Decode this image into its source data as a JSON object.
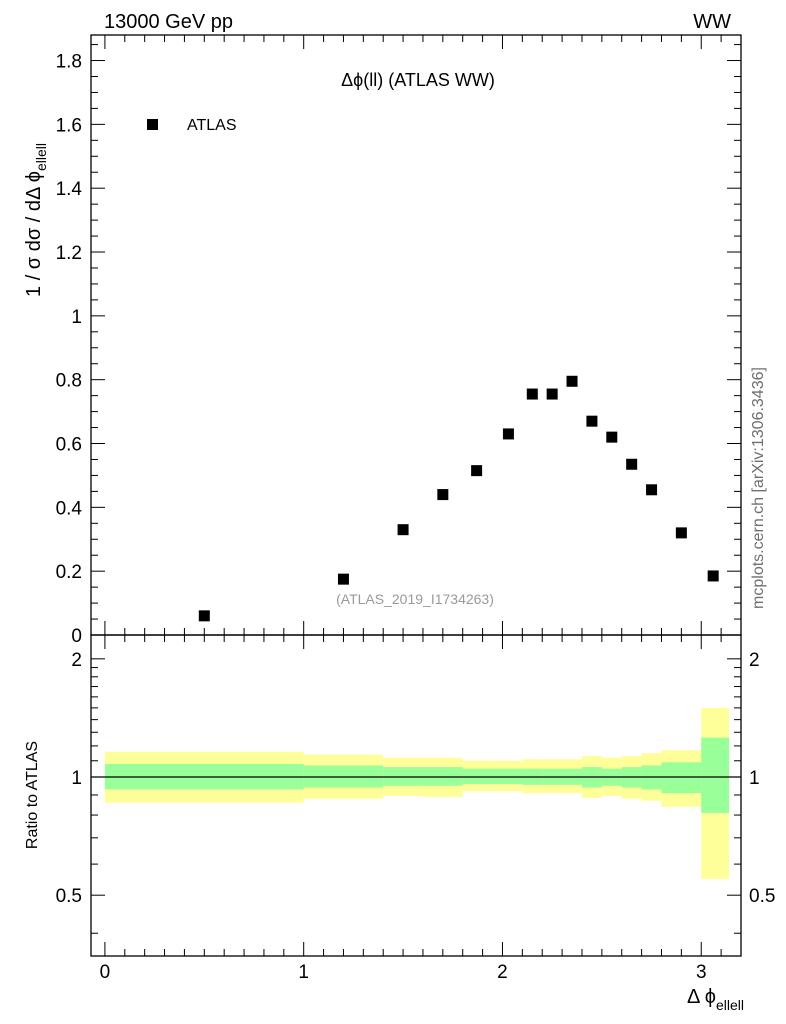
{
  "header": {
    "energy_label": "13000 GeV pp",
    "process_label": "WW"
  },
  "side_label": "mcplots.cern.ch [arXiv:1306.3436]",
  "chart_data": [
    {
      "type": "scatter",
      "panel": "main",
      "title": "Δϕ(ll) (ATLAS WW)",
      "analysis_label": "(ATLAS_2019_I1734263)",
      "ylabel": "1 / σ dσ / dΔ ϕ",
      "ylabel_subscript": "ellell",
      "xlim": [
        -0.07,
        3.2
      ],
      "ylim": [
        0,
        1.88
      ],
      "yticks": [
        0,
        0.2,
        0.4,
        0.6,
        0.8,
        1,
        1.2,
        1.4,
        1.6,
        1.8
      ],
      "ytick_labels": [
        "0",
        "0.2",
        "0.4",
        "0.6",
        "0.8",
        "1",
        "1.2",
        "1.4",
        "1.6",
        "1.8"
      ],
      "legend": {
        "position": "top-left",
        "entries": [
          "ATLAS"
        ]
      },
      "series": [
        {
          "name": "ATLAS",
          "marker": "square",
          "color": "#000000",
          "x": [
            0.5,
            1.2,
            1.5,
            1.7,
            1.87,
            2.03,
            2.15,
            2.25,
            2.35,
            2.45,
            2.55,
            2.65,
            2.75,
            2.9,
            3.06
          ],
          "y": [
            0.06,
            0.175,
            0.33,
            0.44,
            0.515,
            0.63,
            0.755,
            0.755,
            0.795,
            0.67,
            0.62,
            0.535,
            0.455,
            0.32,
            0.185
          ]
        }
      ]
    },
    {
      "type": "area",
      "panel": "ratio",
      "ylabel": "Ratio to ATLAS",
      "xlabel": "Δ ϕ",
      "xlabel_subscript": "ellell",
      "xlim": [
        -0.07,
        3.2
      ],
      "ylim": [
        0.35,
        2.3
      ],
      "log_scale_y": true,
      "xticks": [
        0,
        1,
        2,
        3
      ],
      "xtick_labels": [
        "0",
        "1",
        "2",
        "3"
      ],
      "yticks": [
        0.5,
        1,
        2
      ],
      "ytick_labels": [
        "0.5",
        "1",
        "2"
      ],
      "reference_line": 1,
      "colors": {
        "inner_band": "#99ff99",
        "outer_band": "#ffff99",
        "line": "#000000"
      },
      "bins": [
        {
          "x0": 0.0,
          "x1": 1.0,
          "inner": [
            0.93,
            1.08
          ],
          "outer": [
            0.86,
            1.16
          ]
        },
        {
          "x0": 1.0,
          "x1": 1.4,
          "inner": [
            0.94,
            1.07
          ],
          "outer": [
            0.88,
            1.14
          ]
        },
        {
          "x0": 1.4,
          "x1": 1.6,
          "inner": [
            0.95,
            1.06
          ],
          "outer": [
            0.895,
            1.12
          ]
        },
        {
          "x0": 1.6,
          "x1": 1.8,
          "inner": [
            0.95,
            1.06
          ],
          "outer": [
            0.89,
            1.12
          ]
        },
        {
          "x0": 1.8,
          "x1": 1.95,
          "inner": [
            0.96,
            1.05
          ],
          "outer": [
            0.92,
            1.1
          ]
        },
        {
          "x0": 1.95,
          "x1": 2.1,
          "inner": [
            0.96,
            1.05
          ],
          "outer": [
            0.92,
            1.1
          ]
        },
        {
          "x0": 2.1,
          "x1": 2.2,
          "inner": [
            0.955,
            1.05
          ],
          "outer": [
            0.91,
            1.11
          ]
        },
        {
          "x0": 2.2,
          "x1": 2.3,
          "inner": [
            0.955,
            1.05
          ],
          "outer": [
            0.91,
            1.11
          ]
        },
        {
          "x0": 2.3,
          "x1": 2.4,
          "inner": [
            0.955,
            1.05
          ],
          "outer": [
            0.91,
            1.11
          ]
        },
        {
          "x0": 2.4,
          "x1": 2.5,
          "inner": [
            0.94,
            1.06
          ],
          "outer": [
            0.885,
            1.13
          ]
        },
        {
          "x0": 2.5,
          "x1": 2.6,
          "inner": [
            0.95,
            1.05
          ],
          "outer": [
            0.895,
            1.12
          ]
        },
        {
          "x0": 2.6,
          "x1": 2.7,
          "inner": [
            0.94,
            1.06
          ],
          "outer": [
            0.88,
            1.13
          ]
        },
        {
          "x0": 2.7,
          "x1": 2.8,
          "inner": [
            0.93,
            1.07
          ],
          "outer": [
            0.87,
            1.15
          ]
        },
        {
          "x0": 2.8,
          "x1": 3.0,
          "inner": [
            0.91,
            1.09
          ],
          "outer": [
            0.84,
            1.17
          ]
        },
        {
          "x0": 3.0,
          "x1": 3.14,
          "inner": [
            0.81,
            1.26
          ],
          "outer": [
            0.55,
            1.5
          ]
        }
      ]
    }
  ]
}
